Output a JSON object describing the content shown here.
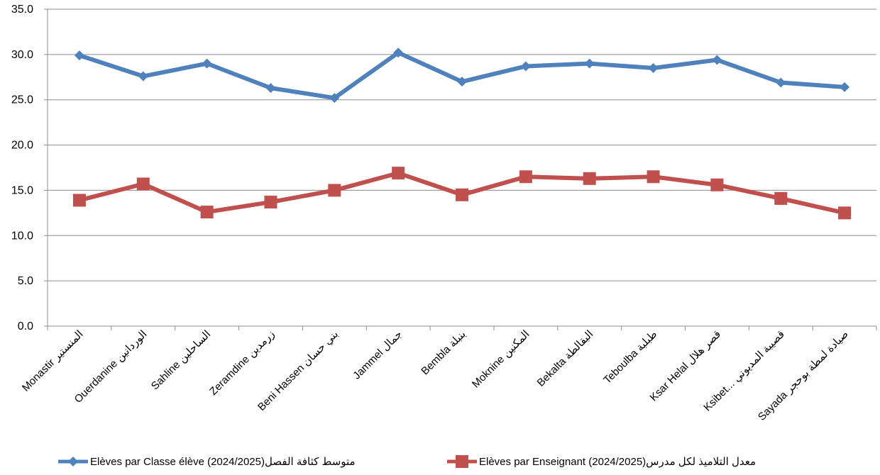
{
  "chart_data": {
    "type": "line",
    "title": "",
    "xlabel": "",
    "ylabel": "",
    "ylim": [
      0,
      35
    ],
    "yticks": [
      "0.0",
      "5.0",
      "10.0",
      "15.0",
      "20.0",
      "25.0",
      "30.0",
      "35.0"
    ],
    "grid": "horizontal",
    "legend_position": "bottom",
    "categories": [
      "Monastir المنستير",
      "Ouerdanine الوردانين",
      "Sahline الساحلين",
      "Zeramdine زرمدين",
      "Beni Hassen بني حسان",
      "Jammel جمال",
      "Bembla بنبلة",
      "Moknine المكنين",
      "Bekalta البقالطة",
      "Teboulba طبلبة",
      "Ksar Helal قصر هلال",
      "Ksibet... قصيبة المديوني",
      "Sayada صيادة لمطة بوحجر"
    ],
    "series": [
      {
        "name": "Elèves par Classe élève  (2024/2025)متوسط كثافة الفصل",
        "color": "#4F81BD",
        "marker": "diamond",
        "values": [
          29.9,
          27.6,
          29.0,
          26.3,
          25.2,
          30.2,
          27.0,
          28.7,
          29.0,
          28.5,
          29.4,
          26.9,
          26.4
        ]
      },
      {
        "name": "Elèves par Enseignant  (2024/2025)معدل التلاميذ لكل مدرس",
        "color": "#C0504D",
        "marker": "square",
        "values": [
          13.9,
          15.7,
          12.6,
          13.7,
          15.0,
          16.9,
          14.5,
          16.5,
          16.3,
          16.5,
          15.6,
          14.1,
          12.5
        ]
      }
    ]
  }
}
